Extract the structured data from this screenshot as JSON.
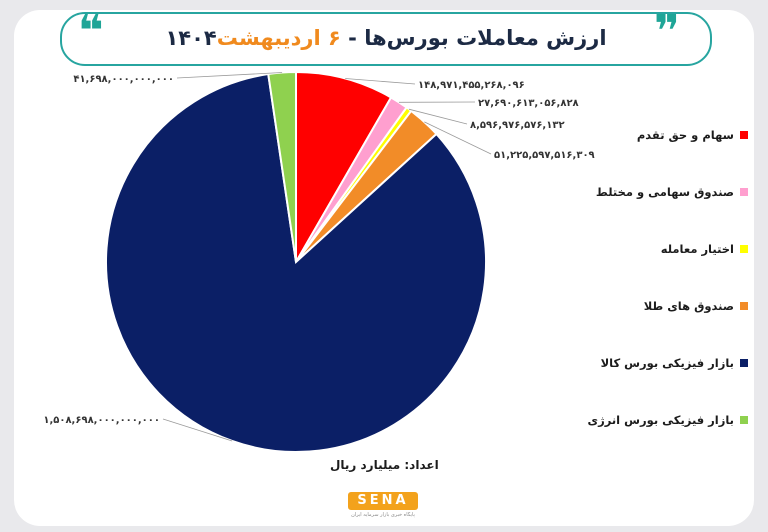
{
  "header": {
    "title_main": "ارزش معاملات بورس‌ها - ",
    "title_accent": "۶ اردیبهشت",
    "title_year": "۱۴۰۴",
    "quote_left": "❝",
    "quote_right": "❞"
  },
  "footer": {
    "source": "اعداد: میلیارد ریال",
    "logo": "SENA",
    "logo_tagline": "پایگاه خبری بازار سرمایه ایران"
  },
  "colors": {
    "accent": "#f08a1e",
    "teal": "#1fa597"
  },
  "chart_data": {
    "type": "pie",
    "title": "ارزش معاملات بورس‌ها - ۶ اردیبهشت ۱۴۰۴",
    "unit": "میلیارد ریال",
    "legend_position": "right",
    "series": [
      {
        "name": "سهام و حق تقدم",
        "value": 148971455268096,
        "label": "۱۴۸,۹۷۱,۴۵۵,۲۶۸,۰۹۶",
        "color": "#ff0000"
      },
      {
        "name": "صندوق سهامی و مختلط",
        "value": 27690613056828,
        "label": "۲۷,۶۹۰,۶۱۳,۰۵۶,۸۲۸",
        "color": "#ff9fcf"
      },
      {
        "name": "اختیار معامله",
        "value": 8596976576132,
        "label": "۸,۵۹۶,۹۷۶,۵۷۶,۱۳۲",
        "color": "#ffff00"
      },
      {
        "name": "صندوق های طلا",
        "value": 51225597516309,
        "label": "۵۱,۲۲۵,۵۹۷,۵۱۶,۳۰۹",
        "color": "#f28c28"
      },
      {
        "name": "بازار فیزیکی بورس کالا",
        "value": 1508698000000000,
        "label": "۱,۵۰۸,۶۹۸,۰۰۰,۰۰۰,۰۰۰",
        "color": "#0b1f66"
      },
      {
        "name": "بازار فیزیکی بورس انرژی",
        "value": 41698000000000,
        "label": "۴۱,۶۹۸,۰۰۰,۰۰۰,۰۰۰",
        "color": "#8fd14f"
      }
    ]
  }
}
